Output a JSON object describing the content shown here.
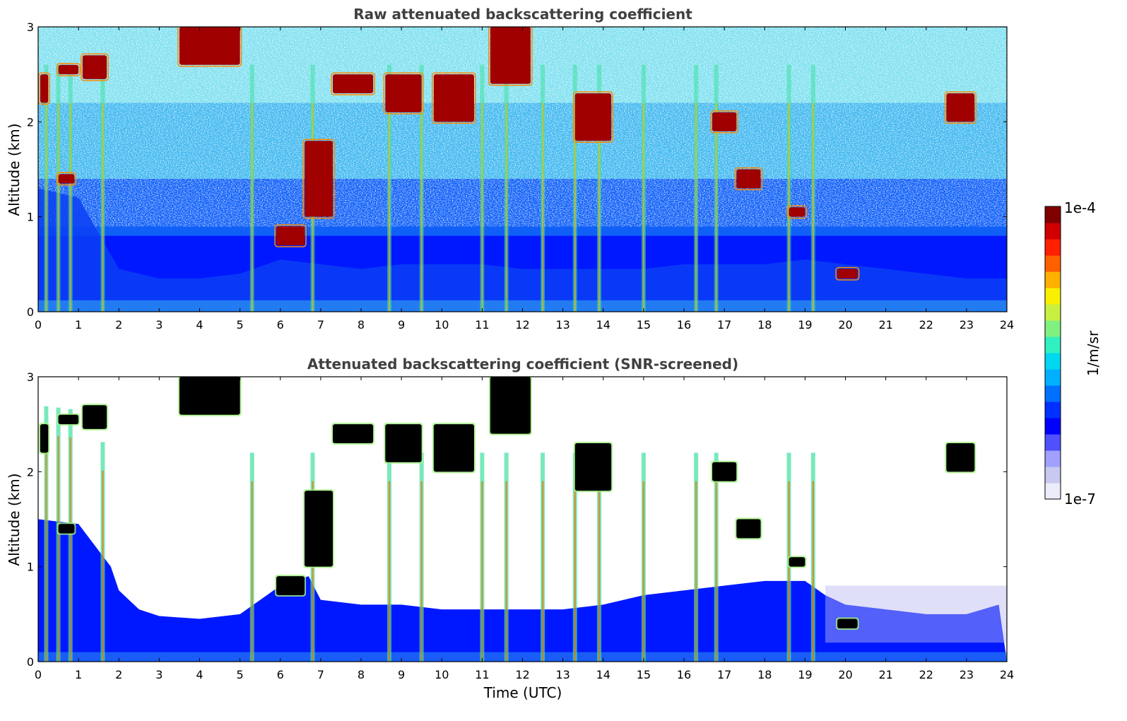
{
  "chart_data": [
    {
      "type": "heatmap",
      "title": "Raw attenuated backscattering coefficient",
      "xlabel": "",
      "ylabel": "Altitude (km)",
      "xlim": [
        0,
        24
      ],
      "ylim": [
        0,
        3
      ],
      "xticks": [
        0,
        1,
        2,
        3,
        4,
        5,
        6,
        7,
        8,
        9,
        10,
        11,
        12,
        13,
        14,
        15,
        16,
        17,
        18,
        19,
        20,
        21,
        22,
        23,
        24
      ],
      "yticks": [
        0,
        1,
        2,
        3
      ],
      "screened": false,
      "boundary_layer_top_km": [
        [
          0,
          1.3
        ],
        [
          1,
          1.2
        ],
        [
          2,
          0.45
        ],
        [
          3,
          0.35
        ],
        [
          4,
          0.35
        ],
        [
          5,
          0.4
        ],
        [
          6,
          0.55
        ],
        [
          7,
          0.5
        ],
        [
          8,
          0.45
        ],
        [
          9,
          0.5
        ],
        [
          10,
          0.5
        ],
        [
          11,
          0.5
        ],
        [
          12,
          0.45
        ],
        [
          13,
          0.45
        ],
        [
          14,
          0.45
        ],
        [
          15,
          0.45
        ],
        [
          16,
          0.5
        ],
        [
          17,
          0.5
        ],
        [
          18,
          0.5
        ],
        [
          19,
          0.55
        ],
        [
          20,
          0.5
        ],
        [
          21,
          0.45
        ],
        [
          22,
          0.4
        ],
        [
          23,
          0.35
        ],
        [
          24,
          0.35
        ]
      ],
      "cloud_layers": [
        {
          "x": [
            0.05,
            0.25
          ],
          "y": [
            2.2,
            2.5
          ]
        },
        {
          "x": [
            0.5,
            1.0
          ],
          "y": [
            2.5,
            2.6
          ]
        },
        {
          "x": [
            0.5,
            0.9
          ],
          "y": [
            1.35,
            1.45
          ]
        },
        {
          "x": [
            1.1,
            1.7
          ],
          "y": [
            2.45,
            2.7
          ]
        },
        {
          "x": [
            3.5,
            5.0
          ],
          "y": [
            2.6,
            3.0
          ]
        },
        {
          "x": [
            5.9,
            6.6
          ],
          "y": [
            0.7,
            0.9
          ]
        },
        {
          "x": [
            6.6,
            7.3
          ],
          "y": [
            1.0,
            1.8
          ]
        },
        {
          "x": [
            7.3,
            8.3
          ],
          "y": [
            2.3,
            2.5
          ]
        },
        {
          "x": [
            8.6,
            9.5
          ],
          "y": [
            2.1,
            2.5
          ]
        },
        {
          "x": [
            9.8,
            10.8
          ],
          "y": [
            2.0,
            2.5
          ]
        },
        {
          "x": [
            11.2,
            12.2
          ],
          "y": [
            2.4,
            3.0
          ]
        },
        {
          "x": [
            13.3,
            14.2
          ],
          "y": [
            1.8,
            2.3
          ]
        },
        {
          "x": [
            16.7,
            17.3
          ],
          "y": [
            1.9,
            2.1
          ]
        },
        {
          "x": [
            17.3,
            17.9
          ],
          "y": [
            1.3,
            1.5
          ]
        },
        {
          "x": [
            18.6,
            19.0
          ],
          "y": [
            1.0,
            1.1
          ]
        },
        {
          "x": [
            19.8,
            20.3
          ],
          "y": [
            0.35,
            0.45
          ]
        },
        {
          "x": [
            22.5,
            23.2
          ],
          "y": [
            2.0,
            2.3
          ]
        }
      ],
      "vertical_streaks_utc": [
        0.2,
        0.5,
        0.8,
        1.6,
        5.3,
        6.8,
        8.7,
        9.5,
        11.0,
        11.6,
        12.5,
        13.3,
        13.9,
        15.0,
        16.3,
        16.8,
        18.6,
        19.2
      ],
      "colorscale": "jet",
      "cbar_range": [
        1e-07,
        0.0001
      ]
    },
    {
      "type": "heatmap",
      "title": "Attenuated backscattering coefficient (SNR-screened)",
      "xlabel": "Time (UTC)",
      "ylabel": "Altitude (km)",
      "xlim": [
        0,
        24
      ],
      "ylim": [
        0,
        3
      ],
      "xticks": [
        0,
        1,
        2,
        3,
        4,
        5,
        6,
        7,
        8,
        9,
        10,
        11,
        12,
        13,
        14,
        15,
        16,
        17,
        18,
        19,
        20,
        21,
        22,
        23,
        24
      ],
      "yticks": [
        0,
        1,
        2,
        3
      ],
      "screened": true,
      "screened_top_km": [
        [
          0,
          1.5
        ],
        [
          1,
          1.45
        ],
        [
          1.8,
          1.0
        ],
        [
          2,
          0.75
        ],
        [
          2.5,
          0.55
        ],
        [
          3,
          0.48
        ],
        [
          4,
          0.45
        ],
        [
          5,
          0.5
        ],
        [
          6,
          0.8
        ],
        [
          6.7,
          0.9
        ],
        [
          7,
          0.65
        ],
        [
          8,
          0.6
        ],
        [
          9,
          0.6
        ],
        [
          10,
          0.55
        ],
        [
          11,
          0.55
        ],
        [
          12,
          0.55
        ],
        [
          13,
          0.55
        ],
        [
          14,
          0.6
        ],
        [
          15,
          0.7
        ],
        [
          16,
          0.75
        ],
        [
          17,
          0.8
        ],
        [
          18,
          0.85
        ],
        [
          19,
          0.85
        ],
        [
          19.5,
          0.7
        ],
        [
          20,
          0.6
        ],
        [
          21,
          0.55
        ],
        [
          22,
          0.5
        ],
        [
          23,
          0.5
        ],
        [
          23.8,
          0.6
        ]
      ],
      "cbar_range": [
        1e-07,
        0.0001
      ]
    }
  ],
  "colorbar": {
    "label": "1/m/sr",
    "max_label": "1e-4",
    "min_label": "1e-7",
    "colors": [
      "#ececfa",
      "#c8c8f0",
      "#a0a0ff",
      "#5050ff",
      "#0000ff",
      "#0030ff",
      "#0070ff",
      "#00b0ff",
      "#00d8f0",
      "#30f0c0",
      "#80f080",
      "#c8f040",
      "#f8f000",
      "#ffb000",
      "#ff6000",
      "#ff2000",
      "#d00000",
      "#800000"
    ]
  }
}
